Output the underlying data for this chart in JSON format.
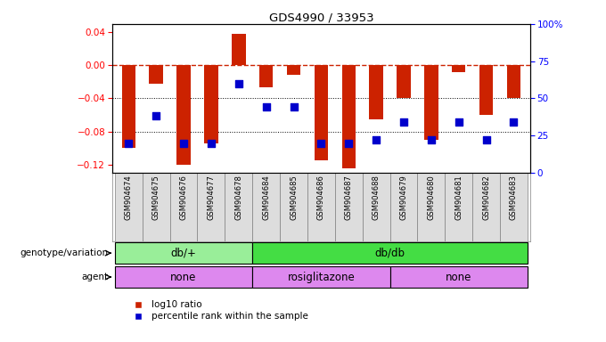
{
  "title": "GDS4990 / 33953",
  "samples": [
    "GSM904674",
    "GSM904675",
    "GSM904676",
    "GSM904677",
    "GSM904678",
    "GSM904684",
    "GSM904685",
    "GSM904686",
    "GSM904687",
    "GSM904688",
    "GSM904679",
    "GSM904680",
    "GSM904681",
    "GSM904682",
    "GSM904683"
  ],
  "log10_ratio": [
    -0.1,
    -0.022,
    -0.12,
    -0.095,
    0.038,
    -0.027,
    -0.012,
    -0.115,
    -0.125,
    -0.065,
    -0.04,
    -0.09,
    -0.008,
    -0.06,
    -0.04
  ],
  "percentile": [
    20,
    38,
    20,
    20,
    60,
    44,
    44,
    20,
    20,
    22,
    34,
    22,
    34,
    22,
    34
  ],
  "ylim_left": [
    -0.13,
    0.05
  ],
  "ylim_right": [
    0,
    100
  ],
  "yticks_left": [
    -0.12,
    -0.08,
    -0.04,
    0.0,
    0.04
  ],
  "yticks_right": [
    0,
    25,
    50,
    75,
    100
  ],
  "dotted_lines": [
    -0.04,
    -0.08
  ],
  "bar_color": "#CC2200",
  "dot_color": "#0000CC",
  "bar_width": 0.5,
  "dot_size": 28,
  "genotype_groups": [
    {
      "label": "db/+",
      "start": 0,
      "end": 5,
      "color": "#99EE99"
    },
    {
      "label": "db/db",
      "start": 5,
      "end": 15,
      "color": "#44DD44"
    }
  ],
  "agent_groups": [
    {
      "label": "none",
      "start": 0,
      "end": 5,
      "color": "#DD88EE"
    },
    {
      "label": "rosiglitazone",
      "start": 5,
      "end": 10,
      "color": "#DD88EE"
    },
    {
      "label": "none",
      "start": 10,
      "end": 15,
      "color": "#DD88EE"
    }
  ],
  "genotype_label": "genotype/variation",
  "agent_label": "agent",
  "legend_items": [
    {
      "label": "log10 ratio",
      "color": "#CC2200"
    },
    {
      "label": "percentile rank within the sample",
      "color": "#0000CC"
    }
  ]
}
